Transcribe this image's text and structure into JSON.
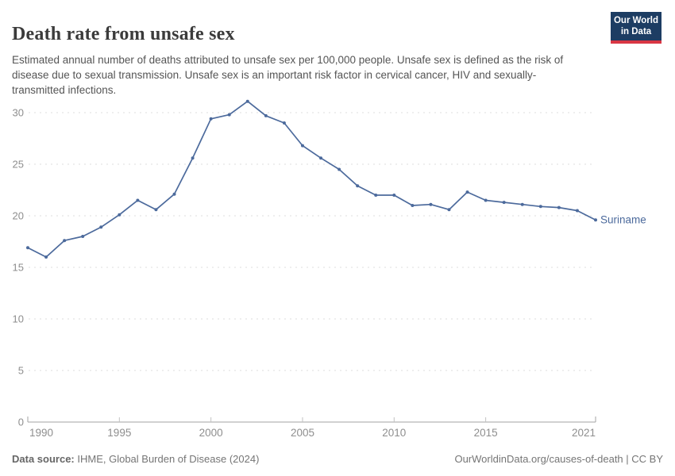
{
  "header": {
    "title": "Death rate from unsafe sex",
    "subtitle": "Estimated annual number of deaths attributed to unsafe sex per 100,000 people. Unsafe sex is defined as the risk of disease due to sexual transmission. Unsafe sex is an important risk factor in cervical cancer, HIV and sexually-transmitted infections."
  },
  "logo": {
    "line1": "Our World",
    "line2": "in Data",
    "bg_color": "#1d3d63",
    "bar_color": "#d93644"
  },
  "footer": {
    "source_label": "Data source:",
    "source_text": " IHME, Global Burden of Disease (2024)",
    "right_text": "OurWorldinData.org/causes-of-death | CC BY"
  },
  "chart_data": {
    "type": "line",
    "title": "Death rate from unsafe sex",
    "x": [
      1990,
      1991,
      1992,
      1993,
      1994,
      1995,
      1996,
      1997,
      1998,
      1999,
      2000,
      2001,
      2002,
      2003,
      2004,
      2005,
      2006,
      2007,
      2008,
      2009,
      2010,
      2011,
      2012,
      2013,
      2014,
      2015,
      2016,
      2017,
      2018,
      2019,
      2020,
      2021
    ],
    "series": [
      {
        "name": "Suriname",
        "color": "#4c6a9c",
        "values": [
          16.9,
          16.0,
          17.6,
          18.0,
          18.9,
          20.1,
          21.5,
          20.6,
          22.1,
          25.6,
          29.4,
          29.8,
          31.1,
          29.7,
          29.0,
          26.8,
          25.6,
          24.5,
          22.9,
          22.0,
          22.0,
          21.0,
          21.1,
          20.6,
          22.3,
          21.5,
          21.3,
          21.1,
          20.9,
          20.8,
          20.5,
          19.6
        ]
      }
    ],
    "entity_label": "Suriname",
    "xlabel": "",
    "ylabel": "",
    "ylim": [
      0,
      32
    ],
    "xlim": [
      1990,
      2021
    ],
    "yticks": [
      0,
      5,
      10,
      15,
      20,
      25,
      30
    ],
    "xticks": [
      1990,
      1995,
      2000,
      2005,
      2010,
      2015,
      2021
    ],
    "grid": "horizontal-dashed",
    "legend_position": "end-of-line-label",
    "colors": {
      "axis": "#a3a3a3",
      "grid": "#dedede",
      "tick_label": "#8e8e8e",
      "interior_tick": "#c2c2c2"
    }
  }
}
